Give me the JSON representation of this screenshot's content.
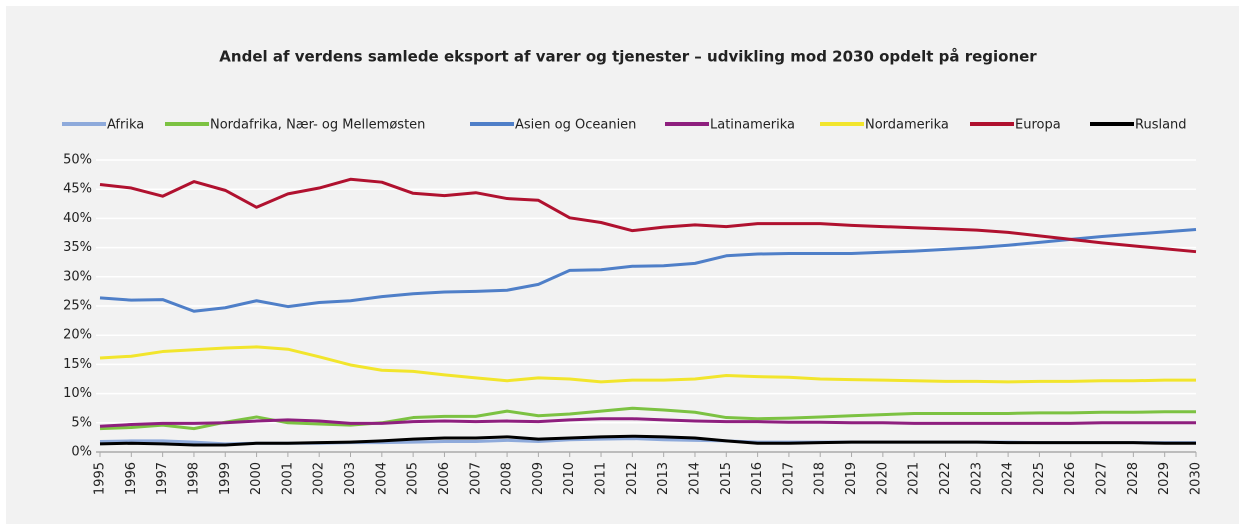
{
  "chart_data": {
    "type": "line",
    "title": "Andel af verdens samlede eksport af varer og tjenester – udvikling mod 2030 opdelt på regioner",
    "categories": [
      "1995",
      "1996",
      "1997",
      "1998",
      "1999",
      "2000",
      "2001",
      "2002",
      "2003",
      "2004",
      "2005",
      "2006",
      "2007",
      "2008",
      "2009",
      "2010",
      "2011",
      "2012",
      "2013",
      "2014",
      "2015",
      "2016",
      "2017",
      "2018",
      "2019",
      "2020",
      "2021",
      "2022",
      "2023",
      "2024",
      "2025",
      "2026",
      "2027",
      "2028",
      "2029",
      "2030"
    ],
    "series": [
      {
        "name": "Afrika",
        "color": "#8eaadb",
        "values": [
          1.8,
          1.9,
          1.9,
          1.7,
          1.4,
          1.5,
          1.5,
          1.5,
          1.6,
          1.6,
          1.7,
          1.8,
          1.8,
          2.0,
          1.8,
          2.1,
          2.2,
          2.3,
          2.1,
          2.0,
          1.9,
          1.7,
          1.7,
          1.7,
          1.7,
          1.7,
          1.7,
          1.7,
          1.7,
          1.7,
          1.6,
          1.6,
          1.6,
          1.6,
          1.6,
          1.6
        ]
      },
      {
        "name": "Nordafrika, Nær- og Mellemøsten",
        "color": "#7cc242",
        "values": [
          4.0,
          4.2,
          4.6,
          4.0,
          5.1,
          6.0,
          5.0,
          4.8,
          4.6,
          5.0,
          5.9,
          6.1,
          6.1,
          7.0,
          6.2,
          6.5,
          7.0,
          7.5,
          7.2,
          6.8,
          5.9,
          5.7,
          5.8,
          6.0,
          6.2,
          6.4,
          6.6,
          6.6,
          6.6,
          6.6,
          6.7,
          6.7,
          6.8,
          6.8,
          6.9,
          6.9
        ]
      },
      {
        "name": "Asien og Oceanien",
        "color": "#4f7fc8",
        "values": [
          26.4,
          26.0,
          26.1,
          24.1,
          24.7,
          25.9,
          24.9,
          25.6,
          25.9,
          26.6,
          27.1,
          27.4,
          27.5,
          27.7,
          28.7,
          31.1,
          31.2,
          31.8,
          31.9,
          32.3,
          33.6,
          33.9,
          34.0,
          34.0,
          34.0,
          34.2,
          34.4,
          34.7,
          35.0,
          35.4,
          35.9,
          36.4,
          36.9,
          37.3,
          37.7,
          38.1
        ]
      },
      {
        "name": "Latinamerika",
        "color": "#8e1f7e",
        "values": [
          4.4,
          4.7,
          4.9,
          4.9,
          5.0,
          5.3,
          5.5,
          5.3,
          4.9,
          4.9,
          5.2,
          5.3,
          5.2,
          5.3,
          5.2,
          5.5,
          5.7,
          5.7,
          5.5,
          5.3,
          5.2,
          5.2,
          5.1,
          5.1,
          5.0,
          5.0,
          4.9,
          4.9,
          4.9,
          4.9,
          4.9,
          4.9,
          5.0,
          5.0,
          5.0,
          5.0
        ]
      },
      {
        "name": "Nordamerika",
        "color": "#f2e52c",
        "values": [
          16.1,
          16.4,
          17.2,
          17.5,
          17.8,
          18.0,
          17.6,
          16.3,
          14.9,
          14.0,
          13.8,
          13.2,
          12.7,
          12.2,
          12.7,
          12.5,
          12.0,
          12.3,
          12.3,
          12.5,
          13.1,
          12.9,
          12.8,
          12.5,
          12.4,
          12.3,
          12.2,
          12.1,
          12.1,
          12.0,
          12.1,
          12.1,
          12.2,
          12.2,
          12.3,
          12.3
        ]
      },
      {
        "name": "Europa",
        "color": "#b0112f",
        "values": [
          45.8,
          45.2,
          43.8,
          46.3,
          44.8,
          41.9,
          44.2,
          45.2,
          46.7,
          46.2,
          44.3,
          43.9,
          44.4,
          43.4,
          43.1,
          40.1,
          39.3,
          37.9,
          38.5,
          38.9,
          38.6,
          39.1,
          39.1,
          39.1,
          38.8,
          38.6,
          38.4,
          38.2,
          38.0,
          37.6,
          37.0,
          36.4,
          35.8,
          35.3,
          34.8,
          34.3
        ]
      },
      {
        "name": "Rusland",
        "color": "#000000",
        "values": [
          1.4,
          1.5,
          1.4,
          1.2,
          1.2,
          1.5,
          1.5,
          1.6,
          1.7,
          1.9,
          2.2,
          2.4,
          2.4,
          2.6,
          2.2,
          2.4,
          2.6,
          2.7,
          2.6,
          2.4,
          1.9,
          1.5,
          1.5,
          1.6,
          1.7,
          1.7,
          1.7,
          1.7,
          1.7,
          1.6,
          1.6,
          1.6,
          1.6,
          1.6,
          1.5,
          1.5
        ]
      }
    ],
    "ylim": [
      0,
      50
    ],
    "yticks": [
      {
        "value": 0,
        "label": "0%"
      },
      {
        "value": 5,
        "label": "5%"
      },
      {
        "value": 10,
        "label": "10%"
      },
      {
        "value": 15,
        "label": "15%"
      },
      {
        "value": 20,
        "label": "20%"
      },
      {
        "value": 25,
        "label": "25%"
      },
      {
        "value": 30,
        "label": "30%"
      },
      {
        "value": 35,
        "label": "35%"
      },
      {
        "value": 40,
        "label": "40%"
      },
      {
        "value": 45,
        "label": "45%"
      },
      {
        "value": 50,
        "label": "50%"
      }
    ],
    "grid": true
  }
}
